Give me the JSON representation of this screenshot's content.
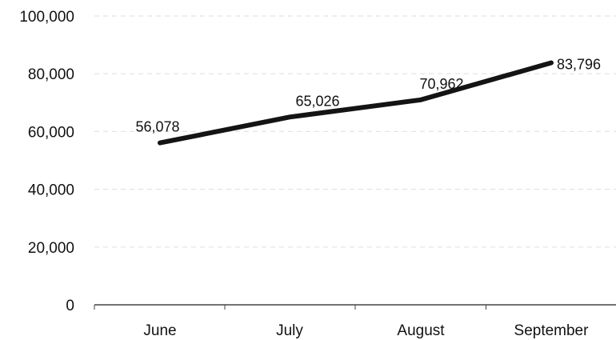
{
  "chart_data": {
    "type": "line",
    "title": "",
    "xlabel": "",
    "ylabel": "",
    "categories": [
      "June",
      "July",
      "August",
      "September"
    ],
    "series": [
      {
        "values": [
          56078,
          65026,
          70962,
          83796
        ],
        "color": "#141414"
      }
    ],
    "data_labels": [
      "56,078",
      "65,026",
      "70,962",
      "83,796"
    ],
    "ylim": [
      0,
      100000
    ],
    "y_ticks": [
      0,
      20000,
      40000,
      60000,
      80000,
      100000
    ],
    "y_tick_labels": [
      "0",
      "20,000",
      "40,000",
      "60,000",
      "80,000",
      "100,000"
    ],
    "grid": true,
    "legend": "none"
  }
}
